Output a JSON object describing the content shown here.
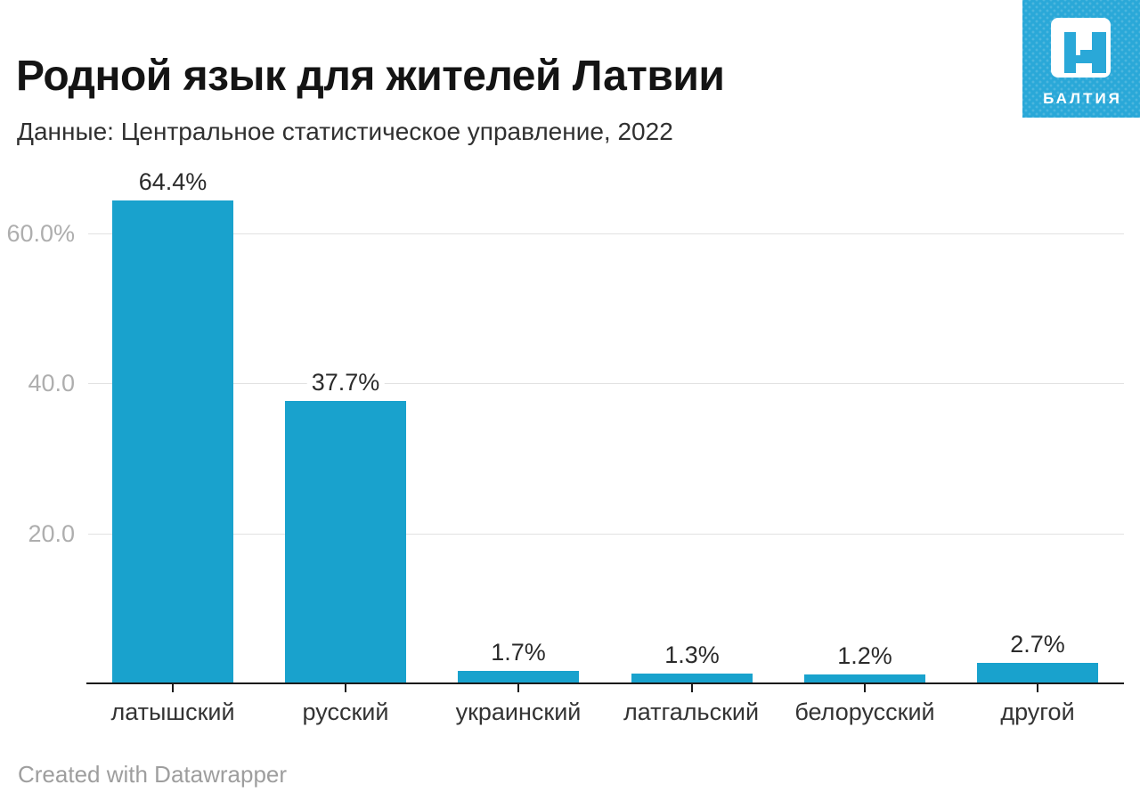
{
  "header": {
    "title": "Родной язык для жителей Латвии",
    "subtitle": "Данные: Центральное статистическое управление, 2022"
  },
  "logo": {
    "wordmark": "БАЛТИЯ",
    "monogram": "ng-letter-n",
    "bg_color": "#2aa8d8"
  },
  "footer": {
    "credit": "Created with Datawrapper"
  },
  "chart_data": {
    "type": "bar",
    "title": "Родной язык для жителей Латвии",
    "subtitle": "Данные: Центральное статистическое управление, 2022",
    "categories": [
      "латышский",
      "русский",
      "украинский",
      "латгальский",
      "белорусский",
      "другой"
    ],
    "values": [
      64.4,
      37.7,
      1.7,
      1.3,
      1.2,
      2.7
    ],
    "value_labels": [
      "64.4%",
      "37.7%",
      "1.7%",
      "1.3%",
      "1.2%",
      "2.7%"
    ],
    "unit": "%",
    "ylim": [
      0,
      68
    ],
    "yticks": [
      {
        "value": 20,
        "label": "20.0"
      },
      {
        "value": 40,
        "label": "40.0"
      },
      {
        "value": 60,
        "label": "60.0%"
      }
    ],
    "grid": "horizontal",
    "legend": "none",
    "bar_color": "#19a2cd"
  }
}
